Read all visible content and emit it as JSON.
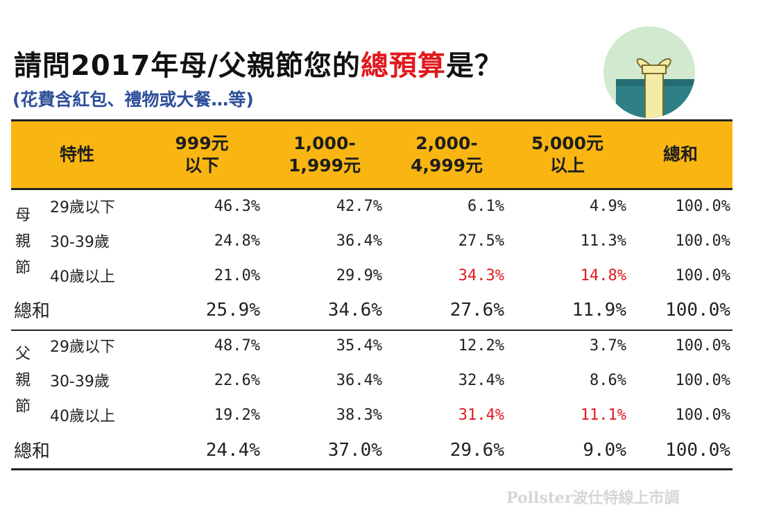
{
  "title": {
    "pre": "請問2017年母/父親節您的",
    "highlight": "總預算",
    "post": "是？"
  },
  "subtitle": "(花費含紅包、禮物或大餐…等)",
  "source": "Pollster波仕特線上市調",
  "colors": {
    "header_bg": "#f9b612",
    "highlight": "#e0191f",
    "subtitle": "#2d4f9a"
  },
  "chart_data": {
    "type": "table",
    "columns": [
      {
        "line1": "特性",
        "line2": ""
      },
      {
        "line1": "999元",
        "line2": "以下"
      },
      {
        "line1": "1,000-",
        "line2": "1,999元"
      },
      {
        "line1": "2,000-",
        "line2": "4,999元"
      },
      {
        "line1": "5,000元",
        "line2": "以上"
      },
      {
        "line1": "總和",
        "line2": ""
      }
    ],
    "groups": [
      {
        "name": "母親節",
        "rows": [
          {
            "label": "29歲以下",
            "values": [
              "46.3%",
              "42.7%",
              "6.1%",
              "4.9%",
              "100.0%"
            ],
            "highlighted": []
          },
          {
            "label": "30-39歲",
            "values": [
              "24.8%",
              "36.4%",
              "27.5%",
              "11.3%",
              "100.0%"
            ],
            "highlighted": []
          },
          {
            "label": "40歲以上",
            "values": [
              "21.0%",
              "29.9%",
              "34.3%",
              "14.8%",
              "100.0%"
            ],
            "highlighted": [
              2,
              3
            ]
          }
        ],
        "total": {
          "label": "總和",
          "values": [
            "25.9%",
            "34.6%",
            "27.6%",
            "11.9%",
            "100.0%"
          ]
        }
      },
      {
        "name": "父親節",
        "rows": [
          {
            "label": "29歲以下",
            "values": [
              "48.7%",
              "35.4%",
              "12.2%",
              "3.7%",
              "100.0%"
            ],
            "highlighted": []
          },
          {
            "label": "30-39歲",
            "values": [
              "22.6%",
              "36.4%",
              "32.4%",
              "8.6%",
              "100.0%"
            ],
            "highlighted": []
          },
          {
            "label": "40歲以上",
            "values": [
              "19.2%",
              "38.3%",
              "31.4%",
              "11.1%",
              "100.0%"
            ],
            "highlighted": [
              2,
              3
            ]
          }
        ],
        "total": {
          "label": "總和",
          "values": [
            "24.4%",
            "37.0%",
            "29.6%",
            "9.0%",
            "100.0%"
          ]
        }
      }
    ]
  }
}
